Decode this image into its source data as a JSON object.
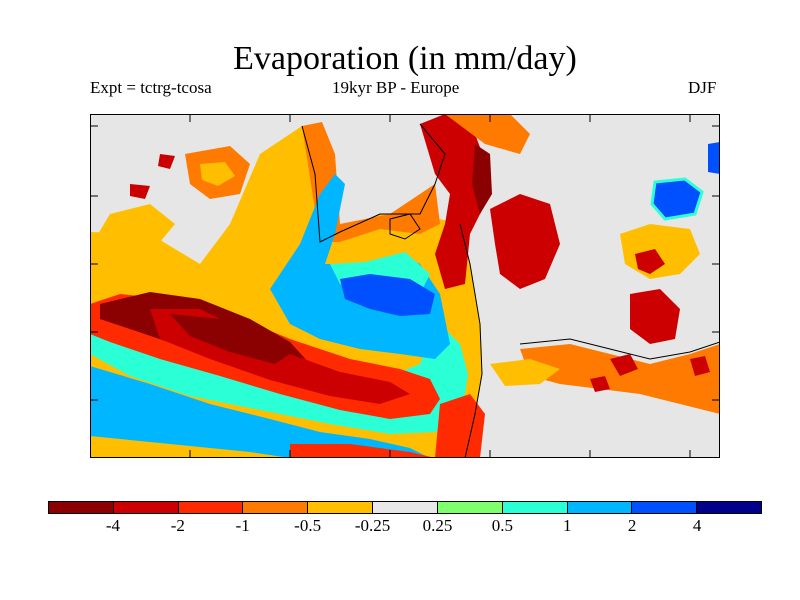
{
  "title": "Evaporation (in mm/day)",
  "subtitle_left": "Expt = tctrg-tcosa",
  "subtitle_center": "19kyr BP - Europe",
  "subtitle_right": "DJF",
  "colorbar": {
    "colors": [
      "#8b0000",
      "#cc0000",
      "#ff2a00",
      "#ff7a00",
      "#ffbf00",
      "#e8e8e8",
      "#80ff6e",
      "#2bffd5",
      "#00b7ff",
      "#0050ff",
      "#00008b"
    ],
    "labels": [
      "-4",
      "-2",
      "-1",
      "-0.5",
      "-0.25",
      "0.25",
      "0.5",
      "1",
      "2",
      "4"
    ]
  },
  "map": {
    "land_color": "#e6e6e6",
    "palette": {
      "dark_red": "#8b0000",
      "red": "#cc0000",
      "red_orange": "#ff2a00",
      "orange": "#ff7a00",
      "yellow": "#ffbf00",
      "green": "#80ff6e",
      "aqua": "#2bffd5",
      "light_blue": "#00b7ff",
      "blue": "#0050ff"
    }
  }
}
